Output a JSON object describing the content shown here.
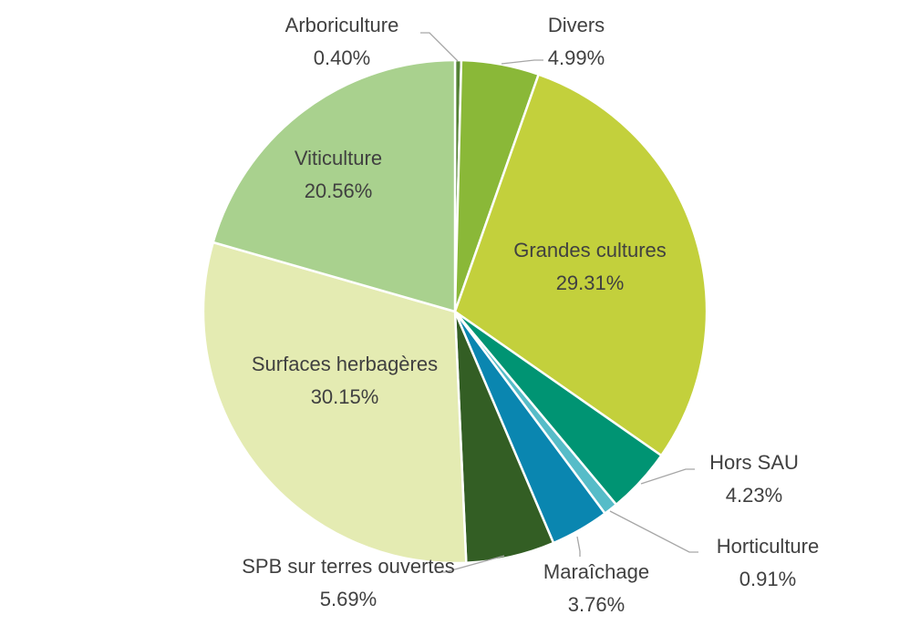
{
  "chart_data": {
    "type": "pie",
    "title": "",
    "slices": [
      {
        "name": "Arboriculture",
        "value": 0.4,
        "value_label": "0.40%",
        "color": "#548235"
      },
      {
        "name": "Divers",
        "value": 4.99,
        "value_label": "4.99%",
        "color": "#8ab838"
      },
      {
        "name": "Grandes cultures",
        "value": 29.31,
        "value_label": "29.31%",
        "color": "#c3d03c"
      },
      {
        "name": "Hors SAU",
        "value": 4.23,
        "value_label": "4.23%",
        "color": "#009473"
      },
      {
        "name": "Horticulture",
        "value": 0.91,
        "value_label": "0.91%",
        "color": "#56bcc8"
      },
      {
        "name": "Maraîchage",
        "value": 3.76,
        "value_label": "3.76%",
        "color": "#0a86b0"
      },
      {
        "name": "SPB sur terres ouvertes",
        "value": 5.69,
        "value_label": "5.69%",
        "color": "#335e24"
      },
      {
        "name": "Surfaces herbagères",
        "value": 30.15,
        "value_label": "30.15%",
        "color": "#e4ebb2"
      },
      {
        "name": "Viticulture",
        "value": 20.56,
        "value_label": "20.56%",
        "color": "#a9d18e"
      }
    ],
    "start_angle_deg": 0,
    "direction": "clockwise",
    "legend": "none"
  }
}
